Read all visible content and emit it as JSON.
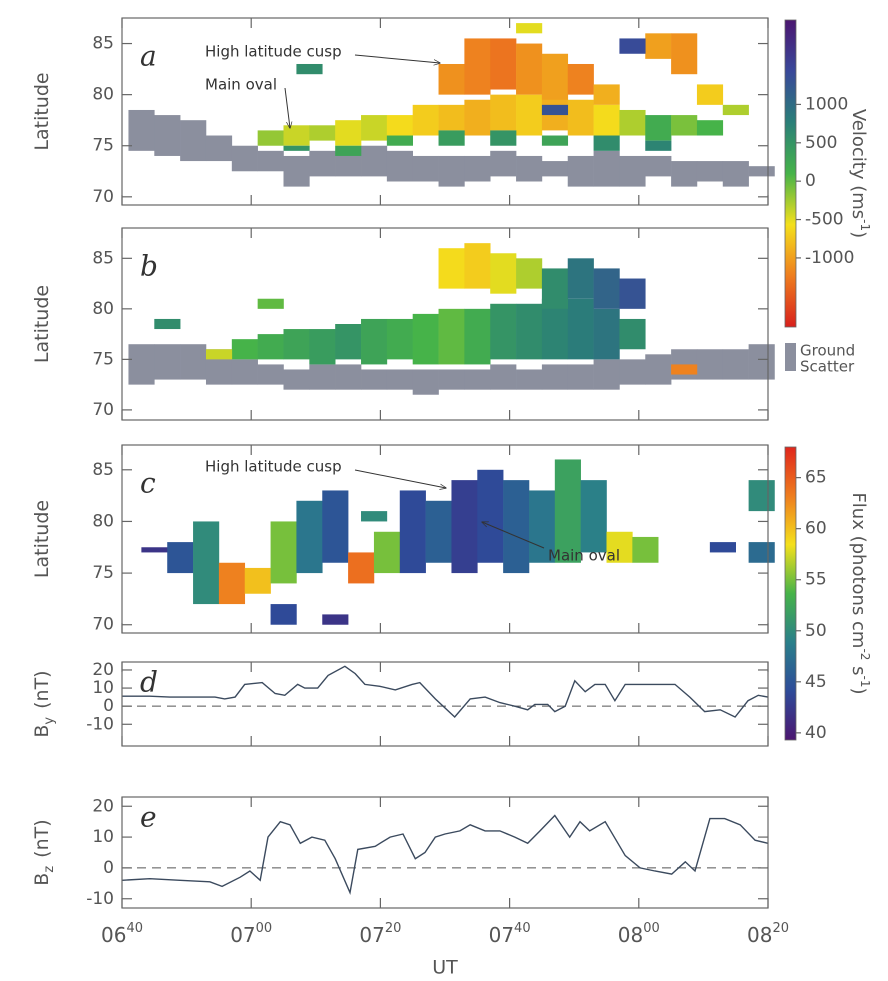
{
  "chart_data": [
    {
      "type": "heatmap",
      "panel_label": "a",
      "ylabel": "Latitude",
      "xlim": [
        400,
        500
      ],
      "ylim": [
        69.2,
        87.5
      ],
      "yticks": [
        70,
        75,
        80,
        85
      ],
      "ground_scatter_color": "#8b8f9e",
      "ground_scatter": [
        [
          401,
          74.5,
          78.5
        ],
        [
          405,
          74,
          78
        ],
        [
          409,
          73.5,
          77.5
        ],
        [
          413,
          73.5,
          76
        ],
        [
          417,
          72.5,
          75
        ],
        [
          421,
          72.5,
          74.5
        ],
        [
          425,
          71,
          74
        ],
        [
          429,
          72,
          74.5
        ],
        [
          433,
          72,
          74.5
        ],
        [
          437,
          72,
          75
        ],
        [
          441,
          71.5,
          74.5
        ],
        [
          445,
          71.5,
          74
        ],
        [
          449,
          71,
          74
        ],
        [
          453,
          71.5,
          74
        ],
        [
          457,
          72,
          74.5
        ],
        [
          461,
          71.5,
          74
        ],
        [
          465,
          72,
          73.5
        ],
        [
          469,
          71,
          74
        ],
        [
          473,
          71,
          74.5
        ],
        [
          477,
          71,
          74
        ],
        [
          481,
          72,
          74
        ],
        [
          485,
          71,
          73.5
        ],
        [
          489,
          71.5,
          73.5
        ],
        [
          493,
          71,
          73.5
        ],
        [
          497,
          72,
          73
        ]
      ],
      "cells": [
        [
          421,
          75,
          76.5,
          -200
        ],
        [
          425,
          75,
          77,
          -400
        ],
        [
          429,
          75.5,
          77,
          -300
        ],
        [
          433,
          75,
          77.5,
          -500
        ],
        [
          437,
          75.5,
          78,
          -400
        ],
        [
          441,
          76,
          78,
          -600
        ],
        [
          445,
          76,
          79,
          -700
        ],
        [
          449,
          76.5,
          79,
          -800
        ],
        [
          453,
          76,
          79.5,
          -900
        ],
        [
          457,
          76.5,
          80,
          -800
        ],
        [
          461,
          76,
          80,
          -700
        ],
        [
          465,
          76.5,
          80,
          -900
        ],
        [
          469,
          76,
          79.5,
          -800
        ],
        [
          473,
          76,
          79,
          -600
        ],
        [
          477,
          76,
          78.5,
          -300
        ],
        [
          481,
          75.5,
          78,
          200
        ],
        [
          485,
          76,
          78,
          -100
        ],
        [
          489,
          76,
          77.5,
          100
        ],
        [
          425,
          74.5,
          75,
          500
        ],
        [
          433,
          74,
          75,
          300
        ],
        [
          441,
          75,
          76,
          200
        ],
        [
          449,
          75,
          76.5,
          400
        ],
        [
          457,
          75,
          76.5,
          500
        ],
        [
          465,
          75,
          76,
          300
        ],
        [
          473,
          74.5,
          76,
          600
        ],
        [
          481,
          74.5,
          75.5,
          700
        ],
        [
          449,
          80,
          83,
          -1100
        ],
        [
          453,
          80,
          85.5,
          -1200
        ],
        [
          457,
          80.5,
          85.5,
          -1300
        ],
        [
          461,
          80,
          85,
          -1100
        ],
        [
          465,
          79.5,
          84,
          -1000
        ],
        [
          469,
          80,
          83,
          -1200
        ],
        [
          473,
          79,
          81,
          -900
        ],
        [
          481,
          83.5,
          86,
          -1000
        ],
        [
          485,
          82,
          86,
          -1100
        ],
        [
          489,
          79,
          81,
          -700
        ],
        [
          493,
          78,
          79,
          -300
        ],
        [
          427,
          82,
          83,
          600
        ],
        [
          461,
          86,
          87,
          -500
        ],
        [
          477,
          84,
          85.5,
          1400
        ],
        [
          465,
          78,
          79,
          1300
        ]
      ],
      "annotations": [
        {
          "text": "High latitude cusp"
        },
        {
          "text": "Main oval"
        }
      ],
      "colorbar": {
        "label": "Velocity (ms",
        "label_sup": "-1",
        "label_end": ")",
        "lim": [
          -1900,
          2100
        ],
        "ticks": [
          -1000,
          -500,
          0,
          500,
          1000
        ],
        "colors": [
          "#d8201c",
          "#ee7d1f",
          "#f4e01c",
          "#46b349",
          "#2a7f78",
          "#39489a",
          "#4b1670"
        ]
      }
    },
    {
      "type": "heatmap",
      "panel_label": "b",
      "ylabel": "Latitude",
      "xlim": [
        400,
        500
      ],
      "ylim": [
        69,
        88
      ],
      "yticks": [
        70,
        75,
        80,
        85
      ],
      "ground_scatter_color": "#8b8f9e",
      "ground_scatter_label": [
        "Ground",
        "Scatter"
      ],
      "ground_scatter": [
        [
          401,
          72.5,
          76.5
        ],
        [
          405,
          73,
          76.5
        ],
        [
          409,
          73,
          76.5
        ],
        [
          413,
          72.5,
          76
        ],
        [
          417,
          72.5,
          75
        ],
        [
          421,
          72.5,
          74.5
        ],
        [
          425,
          72,
          74
        ],
        [
          429,
          72,
          74.5
        ],
        [
          433,
          72,
          74.5
        ],
        [
          437,
          72,
          74
        ],
        [
          441,
          72,
          74
        ],
        [
          445,
          71.5,
          74
        ],
        [
          449,
          72,
          74
        ],
        [
          453,
          72,
          74
        ],
        [
          457,
          72,
          74.5
        ],
        [
          461,
          72,
          74
        ],
        [
          465,
          72,
          74.5
        ],
        [
          469,
          72,
          74.5
        ],
        [
          473,
          72,
          75
        ],
        [
          477,
          72.5,
          75
        ],
        [
          481,
          72.5,
          75.5
        ],
        [
          485,
          73,
          76
        ],
        [
          489,
          73,
          76
        ],
        [
          493,
          73,
          76
        ],
        [
          497,
          73,
          76.5
        ]
      ],
      "cells": [
        [
          417,
          75,
          77,
          100
        ],
        [
          421,
          75,
          77.5,
          200
        ],
        [
          425,
          75,
          78,
          300
        ],
        [
          429,
          74.5,
          78,
          400
        ],
        [
          433,
          75,
          78.5,
          500
        ],
        [
          437,
          74.5,
          79,
          300
        ],
        [
          441,
          75,
          79,
          200
        ],
        [
          445,
          74.5,
          79.5,
          100
        ],
        [
          449,
          74.5,
          80,
          0
        ],
        [
          453,
          74.5,
          80,
          200
        ],
        [
          457,
          75,
          80.5,
          500
        ],
        [
          461,
          75,
          80.5,
          600
        ],
        [
          465,
          75,
          81,
          700
        ],
        [
          469,
          75,
          81,
          800
        ],
        [
          473,
          75,
          80,
          900
        ],
        [
          477,
          76,
          79,
          600
        ],
        [
          449,
          82,
          86,
          -600
        ],
        [
          453,
          82,
          86.5,
          -700
        ],
        [
          457,
          81.5,
          85.5,
          -500
        ],
        [
          461,
          82,
          85,
          -300
        ],
        [
          465,
          80,
          84,
          600
        ],
        [
          469,
          81,
          85,
          900
        ],
        [
          473,
          80,
          84,
          1100
        ],
        [
          477,
          80,
          83,
          1300
        ],
        [
          405,
          78,
          79,
          600
        ],
        [
          413,
          75,
          76,
          -400
        ],
        [
          421,
          80,
          81,
          0
        ],
        [
          485,
          73.5,
          74.5,
          -1200
        ]
      ]
    },
    {
      "type": "heatmap",
      "panel_label": "c",
      "ylabel": "Latitude",
      "xlim": [
        400,
        500
      ],
      "ylim": [
        69.2,
        87.4
      ],
      "yticks": [
        70,
        75,
        80,
        85
      ],
      "cells": [
        [
          403,
          77,
          77.5,
          42
        ],
        [
          407,
          75,
          78,
          45
        ],
        [
          411,
          72,
          80,
          50
        ],
        [
          415,
          72,
          76,
          63
        ],
        [
          419,
          73,
          75.5,
          60
        ],
        [
          423,
          74,
          80,
          55
        ],
        [
          427,
          75,
          82,
          48
        ],
        [
          431,
          76,
          83,
          45
        ],
        [
          435,
          74,
          77,
          64
        ],
        [
          439,
          75,
          79,
          55
        ],
        [
          443,
          75,
          83,
          44
        ],
        [
          447,
          76,
          82,
          46
        ],
        [
          451,
          75,
          84,
          43
        ],
        [
          455,
          76,
          85,
          44
        ],
        [
          459,
          75,
          84,
          46
        ],
        [
          463,
          76,
          83,
          48
        ],
        [
          467,
          76,
          86,
          52
        ],
        [
          471,
          77,
          84,
          49
        ],
        [
          475,
          76,
          79,
          58
        ],
        [
          479,
          76,
          78.5,
          55
        ],
        [
          497,
          76,
          78,
          47
        ],
        [
          497,
          81,
          84,
          50
        ],
        [
          491,
          77,
          78,
          44
        ],
        [
          437,
          80,
          81,
          50
        ],
        [
          423,
          70,
          72,
          44
        ],
        [
          431,
          70,
          71,
          42
        ]
      ],
      "annotations": [
        {
          "text": "High latitude cusp"
        },
        {
          "text": "Main oval"
        }
      ],
      "colorbar": {
        "label": "Flux (photons cm",
        "label_sup": "-2",
        "label_mid": " s",
        "label_sup2": "-1",
        "label_end": ")",
        "lim": [
          39.3,
          68
        ],
        "ticks": [
          40,
          45,
          50,
          55,
          60,
          65
        ],
        "colors": [
          "#4b1670",
          "#2e4b99",
          "#2a7f8a",
          "#46b349",
          "#f4e01c",
          "#ee7d1f",
          "#e0261c"
        ]
      }
    },
    {
      "type": "line",
      "panel_label": "d",
      "ylabel": "B",
      "ylabel_sub": "y",
      "ylabel_unit": "(nT)",
      "xlim": [
        400,
        500
      ],
      "ylim": [
        -22,
        24.4
      ],
      "yticks": [
        -10,
        0,
        10,
        20
      ],
      "reference_line": 0,
      "color": "#3b4a5e",
      "x": [
        400,
        404.3,
        407.4,
        411.3,
        414.4,
        415.9,
        417.5,
        419.0,
        421.7,
        423.7,
        425.2,
        427.2,
        428.3,
        430.3,
        431.9,
        434.5,
        436.1,
        437.6,
        439.9,
        442.3,
        444.9,
        446.1,
        448.5,
        451.5,
        453.9,
        456.2,
        458.5,
        460.8,
        462.8,
        463.9,
        465.9,
        467.0,
        468.6,
        470.1,
        471.7,
        473.2,
        474.8,
        476.3,
        477.9,
        481.7,
        485.6,
        487.9,
        490.2,
        492.6,
        494.9,
        496.9,
        498.5,
        500
      ],
      "values": [
        5.5,
        5.5,
        5,
        5,
        5,
        4,
        5,
        12,
        13,
        7,
        6,
        12,
        10,
        10,
        17,
        22,
        18,
        12,
        11,
        9,
        12,
        13,
        4,
        -6,
        4,
        5,
        2,
        0,
        -2,
        1,
        1,
        -3,
        0,
        14,
        8,
        12,
        12,
        3,
        12,
        12,
        12,
        5,
        -3,
        -2,
        -6,
        3,
        6,
        5
      ]
    },
    {
      "type": "line",
      "panel_label": "e",
      "ylabel": "B",
      "ylabel_sub": "z",
      "ylabel_unit": "(nT)",
      "xlabel": "UT",
      "xlim": [
        400,
        500
      ],
      "ylim": [
        -13,
        23
      ],
      "yticks": [
        -10,
        0,
        10,
        20
      ],
      "reference_line": 0,
      "color": "#3b4a5e",
      "xticks": [
        {
          "value": 400,
          "label": "06",
          "sup": "40"
        },
        {
          "value": 420,
          "label": "07",
          "sup": "00"
        },
        {
          "value": 440,
          "label": "07",
          "sup": "20"
        },
        {
          "value": 460,
          "label": "07",
          "sup": "40"
        },
        {
          "value": 480,
          "label": "08",
          "sup": "00"
        },
        {
          "value": 500,
          "label": "08",
          "sup": "20"
        }
      ],
      "x": [
        400,
        404.3,
        409.0,
        413.6,
        415.5,
        418.3,
        419.8,
        421.4,
        422.6,
        424.5,
        426.0,
        427.6,
        429.4,
        431.4,
        433.0,
        435.3,
        436.5,
        439.2,
        441.5,
        443.5,
        445.4,
        446.9,
        448.5,
        450.0,
        452.3,
        453.9,
        456.2,
        458.5,
        460.8,
        462.8,
        464.7,
        467.0,
        469.3,
        470.9,
        472.4,
        474.8,
        477.9,
        480.2,
        482.5,
        485.1,
        487.2,
        488.7,
        491.0,
        493.3,
        495.7,
        498.0,
        500
      ],
      "values": [
        -4,
        -3.5,
        -4,
        -4.5,
        -6,
        -3,
        -1,
        -4,
        10,
        15,
        14,
        8,
        10,
        9,
        3,
        -8,
        6,
        7,
        10,
        11,
        3,
        5,
        10,
        11,
        12,
        14,
        12,
        12,
        10,
        8,
        12,
        17,
        10,
        15,
        12,
        15,
        4,
        0,
        -1,
        -2,
        2,
        -1,
        16,
        16,
        14,
        9,
        8
      ]
    }
  ]
}
